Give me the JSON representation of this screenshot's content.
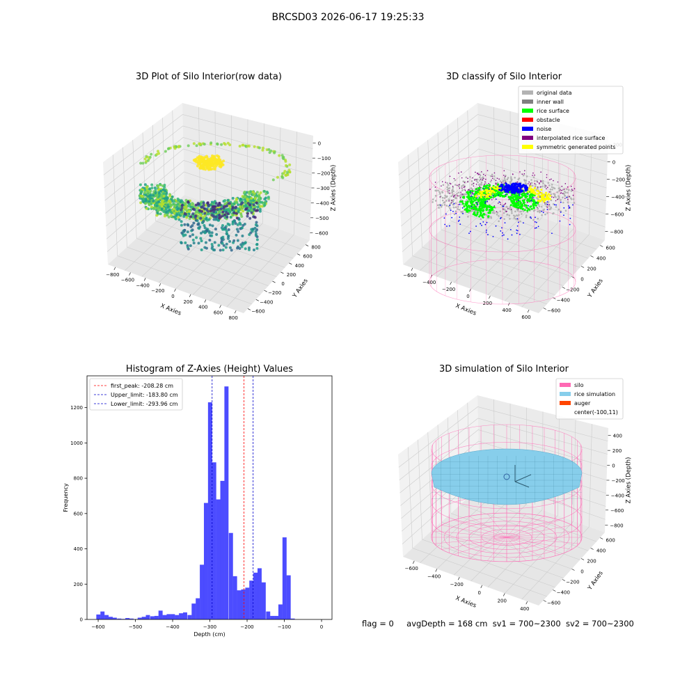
{
  "figure": {
    "suptitle": "BRCSD03 2026-06-17 19:25:33",
    "footer": {
      "flag": "flag = 0",
      "avg": "avgDepth = 168 cm",
      "sv1": "sv1 = 700~2300",
      "sv2": "sv2 = 700~2300"
    }
  },
  "colors": {
    "hist_bar": "#0000ff",
    "first_peak": "#ff0000",
    "limit": "#0000cc",
    "pane": "#f2f2f2",
    "silo_wire": "#ff69b4",
    "rice_sim": "#87ceeb"
  },
  "chart_data": [
    {
      "type": "scatter3d",
      "title": "3D Plot of Silo Interior(row data)",
      "xlabel": "X Axies",
      "ylabel": "Y Axies",
      "zlabel": "Z Axies (Depth)",
      "xticks": [
        "−800",
        "−600",
        "−400",
        "−200",
        "0",
        "200",
        "400",
        "600",
        "800"
      ],
      "yticks": [
        "−600",
        "−400",
        "−200",
        "0",
        "200",
        "400",
        "600",
        "800"
      ],
      "zticks": [
        "0",
        "−100",
        "−200",
        "−300",
        "−400",
        "−500",
        "−600"
      ],
      "colormap": "viridis"
    },
    {
      "type": "scatter3d",
      "title": "3D classify of Silo Interior",
      "xlabel": "X Axies",
      "ylabel": "Y Axies",
      "zlabel": "Z Axies (Depth)",
      "xticks": [
        "−600",
        "−400",
        "−200",
        "0",
        "200",
        "400",
        "600"
      ],
      "yticks": [
        "−600",
        "−400",
        "−200",
        "0",
        "200",
        "400",
        "600"
      ],
      "zticks": [
        "200",
        "0",
        "−200",
        "−400",
        "−600",
        "−800"
      ],
      "legend_position": "top-right",
      "legend": [
        {
          "label": "original data",
          "color": "#b3b3b3"
        },
        {
          "label": "inner wall",
          "color": "#808080"
        },
        {
          "label": "rice surface",
          "color": "#00ff00"
        },
        {
          "label": "obstacle",
          "color": "#ff0000"
        },
        {
          "label": "noise",
          "color": "#0000ff"
        },
        {
          "label": "interpolated rice surface",
          "color": "#800080"
        },
        {
          "label": "symmetric generated points",
          "color": "#ffff00"
        }
      ]
    },
    {
      "type": "bar",
      "title": "Histogram of Z-Axies (Height) Values",
      "xlabel": "Depth (cm)",
      "ylabel": "Frequency",
      "xlim": [
        -630,
        28
      ],
      "ylim": [
        0,
        1380
      ],
      "xticks": [
        -600,
        -500,
        -400,
        -300,
        -200,
        -100,
        0
      ],
      "xtick_labels": [
        "−600",
        "−500",
        "−400",
        "−300",
        "−200",
        "−100",
        "0"
      ],
      "yticks": [
        0,
        200,
        400,
        600,
        800,
        1000,
        1200
      ],
      "bin_width": 11.1,
      "bins_left": [
        -605,
        -594,
        -583,
        -572,
        -561,
        -549,
        -538,
        -527,
        -516,
        -505,
        -494,
        -483,
        -472,
        -460,
        -449,
        -438,
        -427,
        -416,
        -405,
        -394,
        -383,
        -372,
        -360,
        -349,
        -338,
        -327,
        -316,
        -305,
        -294,
        -283,
        -272,
        -261,
        -249,
        -238,
        -227,
        -216,
        -205,
        -194,
        -183,
        -172,
        -161,
        -149,
        -138,
        -127,
        -116,
        -105,
        -94,
        -83,
        -72,
        -61,
        -49,
        -38,
        -27,
        -16,
        -5
      ],
      "values": [
        28,
        45,
        25,
        15,
        10,
        5,
        3,
        8,
        5,
        2,
        10,
        15,
        25,
        18,
        20,
        50,
        25,
        30,
        30,
        25,
        35,
        40,
        25,
        90,
        120,
        310,
        660,
        1230,
        890,
        680,
        785,
        1320,
        490,
        245,
        165,
        170,
        180,
        220,
        265,
        290,
        210,
        45,
        20,
        20,
        85,
        465,
        250,
        5,
        0,
        0,
        0,
        0,
        0,
        0,
        0
      ],
      "lines": [
        {
          "x": -208.28,
          "label": "first_peak: -208.28 cm",
          "color": "#ff0000"
        },
        {
          "x": -183.8,
          "label": "Upper_limit: -183.80 cm",
          "color": "#0000cc"
        },
        {
          "x": -293.96,
          "label": "Lower_limit: -293.96 cm",
          "color": "#0000cc"
        }
      ],
      "legend_position": "top-left"
    },
    {
      "type": "surface3d",
      "title": "3D simulation of Silo Interior",
      "xlabel": "X Axies",
      "ylabel": "Y Axies",
      "zlabel": "Z Axies (Depth)",
      "xticks": [
        "−600",
        "−400",
        "−200",
        "0",
        "200",
        "400"
      ],
      "yticks": [
        "−600",
        "−400",
        "−200",
        "0",
        "200",
        "400",
        "600"
      ],
      "zticks": [
        "400",
        "200",
        "0",
        "−200",
        "−400",
        "−600",
        "−800"
      ],
      "legend_position": "top-right",
      "legend": [
        {
          "label": "silo",
          "color": "#ff69b4"
        },
        {
          "label": "rice simulation",
          "color": "#87ceeb"
        },
        {
          "label": "auger",
          "color": "#ff4500"
        },
        {
          "label": "center(-100,11)",
          "color": ""
        }
      ]
    }
  ]
}
